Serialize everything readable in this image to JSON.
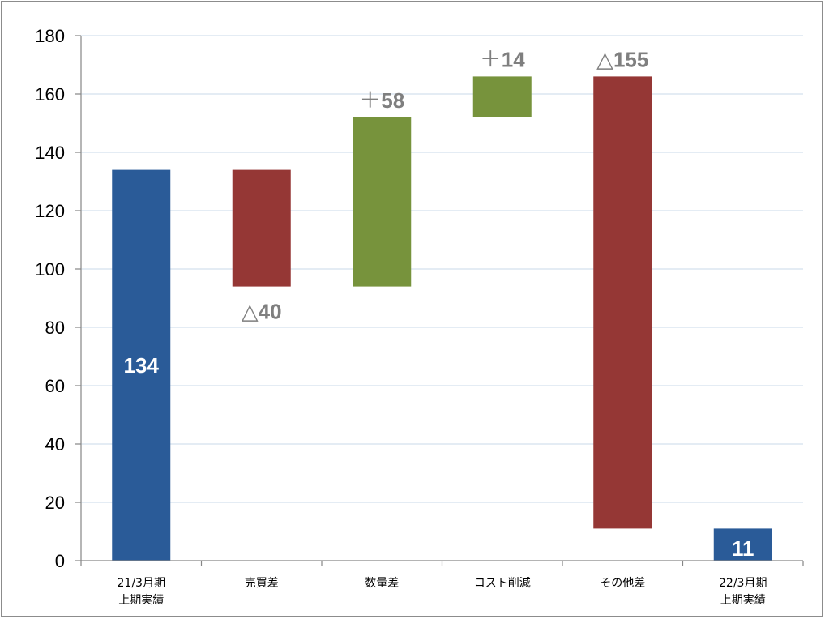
{
  "chart_data": {
    "type": "bar",
    "subtype": "waterfall",
    "categories": [
      [
        "21/3月期",
        "上期実績"
      ],
      [
        "売買差"
      ],
      [
        "数量差"
      ],
      [
        "コスト削減"
      ],
      [
        "その他差"
      ],
      [
        "22/3月期",
        "上期実績"
      ]
    ],
    "bars": [
      {
        "kind": "total",
        "start": 0,
        "end": 134,
        "color": "#2a5b98",
        "label": "134",
        "label_pos": "inside",
        "label_color": "#ffffff"
      },
      {
        "kind": "decrease",
        "start": 134,
        "end": 94,
        "color": "#953735",
        "label_symbol": "△",
        "label_value": "40",
        "label_pos": "below",
        "label_color": "#7f7f7f"
      },
      {
        "kind": "increase",
        "start": 94,
        "end": 152,
        "color": "#77933c",
        "label_symbol": "＋",
        "label_value": "58",
        "label_pos": "above",
        "label_color": "#7f7f7f"
      },
      {
        "kind": "increase",
        "start": 152,
        "end": 166,
        "color": "#77933c",
        "label_symbol": "＋",
        "label_value": "14",
        "label_pos": "above",
        "label_color": "#7f7f7f"
      },
      {
        "kind": "decrease",
        "start": 166,
        "end": 11,
        "color": "#953735",
        "label_symbol": "△",
        "label_value": "155",
        "label_pos": "above",
        "label_color": "#7f7f7f"
      },
      {
        "kind": "total",
        "start": 0,
        "end": 11,
        "color": "#2a5b98",
        "label": "11",
        "label_pos": "inside",
        "label_color": "#ffffff"
      }
    ],
    "ylim": [
      0,
      180
    ],
    "yticks": [
      0,
      20,
      40,
      60,
      80,
      100,
      120,
      140,
      160,
      180
    ],
    "grid": true,
    "grid_color": "#dce6f1",
    "title": "",
    "xlabel": "",
    "ylabel": ""
  }
}
